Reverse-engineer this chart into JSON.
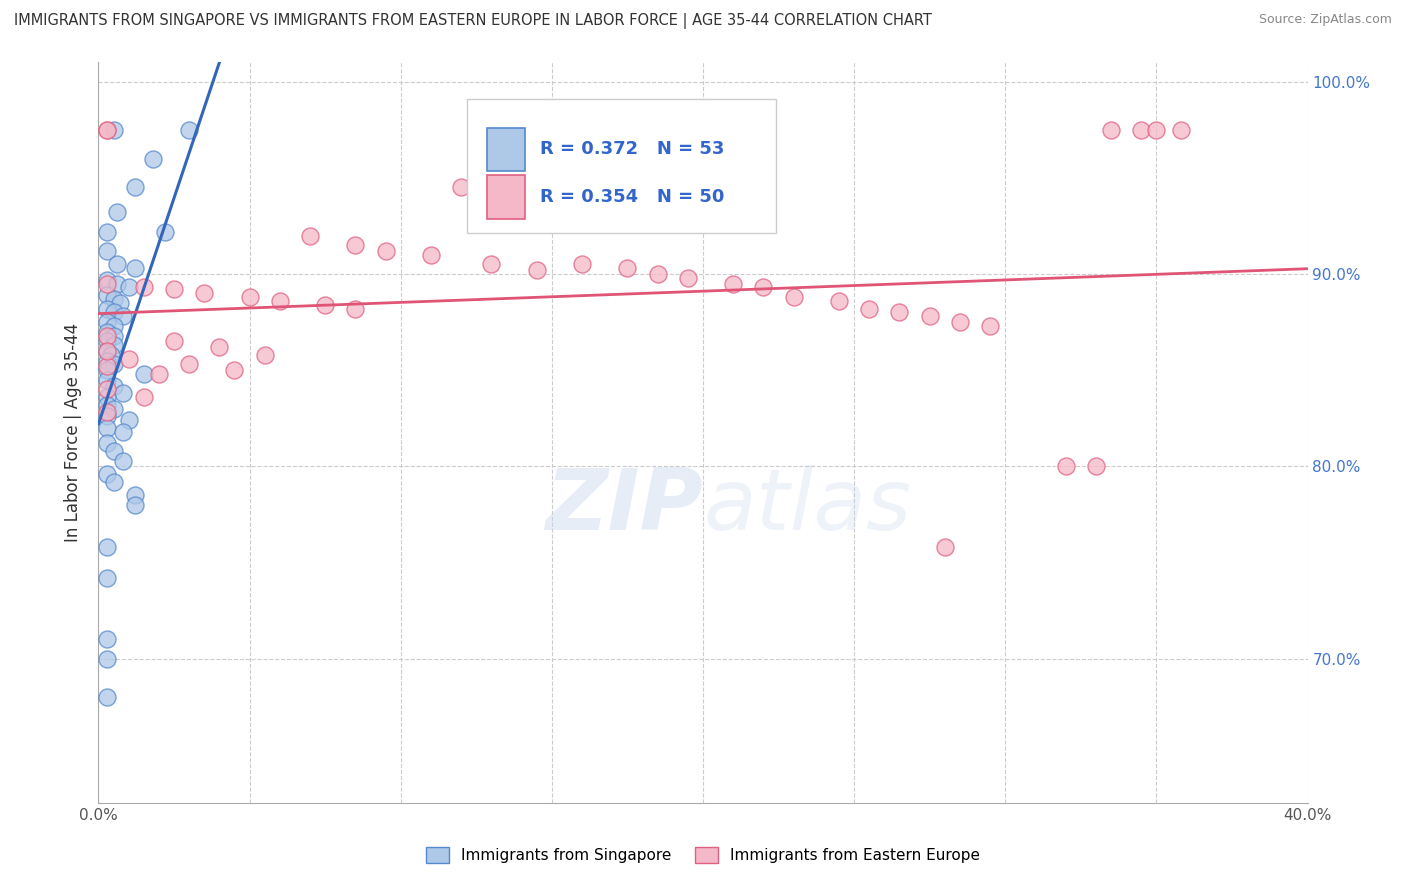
{
  "title": "IMMIGRANTS FROM SINGAPORE VS IMMIGRANTS FROM EASTERN EUROPE IN LABOR FORCE | AGE 35-44 CORRELATION CHART",
  "source": "Source: ZipAtlas.com",
  "ylabel": "In Labor Force | Age 35-44",
  "xlim": [
    0.0,
    0.4
  ],
  "ylim": [
    0.625,
    1.01
  ],
  "xticks": [
    0.0,
    0.05,
    0.1,
    0.15,
    0.2,
    0.25,
    0.3,
    0.35,
    0.4
  ],
  "yticks": [
    0.7,
    0.8,
    0.9,
    1.0
  ],
  "R_blue": 0.372,
  "N_blue": 53,
  "R_pink": 0.354,
  "N_pink": 50,
  "blue_color": "#aec8e8",
  "pink_color": "#f4b8c8",
  "blue_edge_color": "#5588cc",
  "pink_edge_color": "#e06080",
  "blue_line_color": "#3366bb",
  "pink_line_color": "#e05575",
  "blue_scatter": [
    [
      0.005,
      0.975
    ],
    [
      0.03,
      0.975
    ],
    [
      0.018,
      0.96
    ],
    [
      0.012,
      0.945
    ],
    [
      0.006,
      0.932
    ],
    [
      0.003,
      0.922
    ],
    [
      0.022,
      0.922
    ],
    [
      0.003,
      0.912
    ],
    [
      0.006,
      0.905
    ],
    [
      0.012,
      0.903
    ],
    [
      0.003,
      0.897
    ],
    [
      0.006,
      0.895
    ],
    [
      0.01,
      0.893
    ],
    [
      0.003,
      0.889
    ],
    [
      0.005,
      0.887
    ],
    [
      0.007,
      0.885
    ],
    [
      0.003,
      0.882
    ],
    [
      0.005,
      0.88
    ],
    [
      0.008,
      0.878
    ],
    [
      0.003,
      0.875
    ],
    [
      0.005,
      0.873
    ],
    [
      0.003,
      0.87
    ],
    [
      0.005,
      0.868
    ],
    [
      0.003,
      0.865
    ],
    [
      0.005,
      0.863
    ],
    [
      0.003,
      0.86
    ],
    [
      0.004,
      0.858
    ],
    [
      0.003,
      0.855
    ],
    [
      0.005,
      0.853
    ],
    [
      0.003,
      0.85
    ],
    [
      0.015,
      0.848
    ],
    [
      0.003,
      0.845
    ],
    [
      0.005,
      0.842
    ],
    [
      0.008,
      0.838
    ],
    [
      0.003,
      0.836
    ],
    [
      0.003,
      0.832
    ],
    [
      0.005,
      0.83
    ],
    [
      0.003,
      0.826
    ],
    [
      0.01,
      0.824
    ],
    [
      0.003,
      0.82
    ],
    [
      0.008,
      0.818
    ],
    [
      0.003,
      0.812
    ],
    [
      0.005,
      0.808
    ],
    [
      0.008,
      0.803
    ],
    [
      0.003,
      0.796
    ],
    [
      0.005,
      0.792
    ],
    [
      0.012,
      0.785
    ],
    [
      0.012,
      0.78
    ],
    [
      0.003,
      0.758
    ],
    [
      0.003,
      0.742
    ],
    [
      0.003,
      0.71
    ],
    [
      0.003,
      0.7
    ],
    [
      0.003,
      0.68
    ]
  ],
  "pink_scatter": [
    [
      0.003,
      0.975
    ],
    [
      0.003,
      0.975
    ],
    [
      0.335,
      0.975
    ],
    [
      0.345,
      0.975
    ],
    [
      0.35,
      0.975
    ],
    [
      0.358,
      0.975
    ],
    [
      0.12,
      0.945
    ],
    [
      0.07,
      0.92
    ],
    [
      0.085,
      0.915
    ],
    [
      0.095,
      0.912
    ],
    [
      0.11,
      0.91
    ],
    [
      0.13,
      0.905
    ],
    [
      0.145,
      0.902
    ],
    [
      0.003,
      0.895
    ],
    [
      0.015,
      0.893
    ],
    [
      0.025,
      0.892
    ],
    [
      0.035,
      0.89
    ],
    [
      0.05,
      0.888
    ],
    [
      0.06,
      0.886
    ],
    [
      0.075,
      0.884
    ],
    [
      0.085,
      0.882
    ],
    [
      0.16,
      0.905
    ],
    [
      0.175,
      0.903
    ],
    [
      0.185,
      0.9
    ],
    [
      0.195,
      0.898
    ],
    [
      0.21,
      0.895
    ],
    [
      0.22,
      0.893
    ],
    [
      0.23,
      0.888
    ],
    [
      0.245,
      0.886
    ],
    [
      0.255,
      0.882
    ],
    [
      0.265,
      0.88
    ],
    [
      0.275,
      0.878
    ],
    [
      0.285,
      0.875
    ],
    [
      0.295,
      0.873
    ],
    [
      0.003,
      0.868
    ],
    [
      0.025,
      0.865
    ],
    [
      0.04,
      0.862
    ],
    [
      0.055,
      0.858
    ],
    [
      0.003,
      0.852
    ],
    [
      0.02,
      0.848
    ],
    [
      0.003,
      0.84
    ],
    [
      0.015,
      0.836
    ],
    [
      0.003,
      0.828
    ],
    [
      0.32,
      0.8
    ],
    [
      0.33,
      0.8
    ],
    [
      0.28,
      0.758
    ],
    [
      0.003,
      0.86
    ],
    [
      0.01,
      0.856
    ],
    [
      0.03,
      0.853
    ],
    [
      0.045,
      0.85
    ]
  ],
  "background_color": "#ffffff",
  "grid_color": "#cccccc"
}
